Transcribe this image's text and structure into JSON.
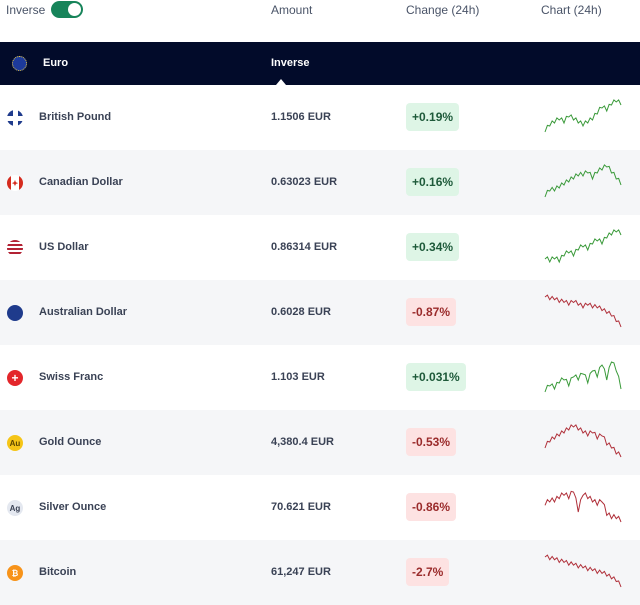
{
  "header": {
    "toggle_label": "Inverse",
    "toggle_on": true,
    "amount": "Amount",
    "change": "Change (24h)",
    "chart": "Chart (24h)"
  },
  "base": {
    "name": "Euro",
    "column": "Inverse",
    "icon": "eu-flag-icon"
  },
  "colors": {
    "positive": "#3a9a3a",
    "negative": "#b0303a",
    "toggle": "#17845a"
  },
  "rows": [
    {
      "name": "British Pound",
      "amount": "1.1506 EUR",
      "change": "+0.19%",
      "dir": "up",
      "icon": "uk-flag-icon",
      "trend": [
        2,
        4,
        5,
        6,
        5,
        7,
        6,
        5,
        4,
        5,
        6,
        8,
        10,
        9,
        11,
        12,
        11
      ]
    },
    {
      "name": "Canadian Dollar",
      "amount": "0.63023 EUR",
      "change": "+0.16%",
      "dir": "up",
      "icon": "canada-flag-icon",
      "trend": [
        1,
        3,
        3,
        4,
        5,
        6,
        7,
        8,
        8,
        9,
        7,
        9,
        10,
        11,
        9,
        7,
        5
      ]
    },
    {
      "name": "US Dollar",
      "amount": "0.86314 EUR",
      "change": "+0.34%",
      "dir": "up",
      "icon": "us-flag-icon",
      "trend": [
        3,
        2,
        3,
        2,
        4,
        5,
        4,
        6,
        7,
        6,
        8,
        9,
        8,
        10,
        11,
        12,
        11
      ]
    },
    {
      "name": "Australian Dollar",
      "amount": "0.6028 EUR",
      "change": "-0.87%",
      "dir": "down",
      "icon": "australia-flag-icon",
      "trend": [
        12,
        11,
        11,
        10,
        10,
        9,
        10,
        9,
        8,
        9,
        8,
        8,
        7,
        6,
        5,
        3,
        1
      ]
    },
    {
      "name": "Swiss Franc",
      "amount": "1.103 EUR",
      "change": "+0.031%",
      "dir": "up",
      "icon": "swiss-flag-icon",
      "trend": [
        2,
        4,
        3,
        5,
        6,
        4,
        7,
        6,
        8,
        5,
        9,
        7,
        11,
        6,
        12,
        9,
        3
      ]
    },
    {
      "name": "Gold Ounce",
      "amount": "4,380.4 EUR",
      "change": "-0.53%",
      "dir": "down",
      "icon": "gold-icon",
      "icon_text": "Au",
      "trend": [
        5,
        7,
        8,
        9,
        10,
        11,
        12,
        11,
        10,
        9,
        10,
        8,
        9,
        6,
        5,
        3,
        2
      ]
    },
    {
      "name": "Silver Ounce",
      "amount": "70.621 EUR",
      "change": "-0.86%",
      "dir": "down",
      "icon": "silver-icon",
      "icon_text": "Ag",
      "trend": [
        8,
        9,
        9,
        10,
        11,
        10,
        12,
        6,
        11,
        10,
        9,
        8,
        9,
        5,
        4,
        4,
        3
      ]
    },
    {
      "name": "Bitcoin",
      "amount": "61,247 EUR",
      "change": "-2.7%",
      "dir": "down",
      "icon": "bitcoin-icon",
      "icon_text": "₿",
      "trend": [
        12,
        11,
        11,
        10,
        10,
        9,
        9,
        8,
        8,
        7,
        7,
        6,
        6,
        5,
        4,
        3,
        1
      ]
    }
  ]
}
